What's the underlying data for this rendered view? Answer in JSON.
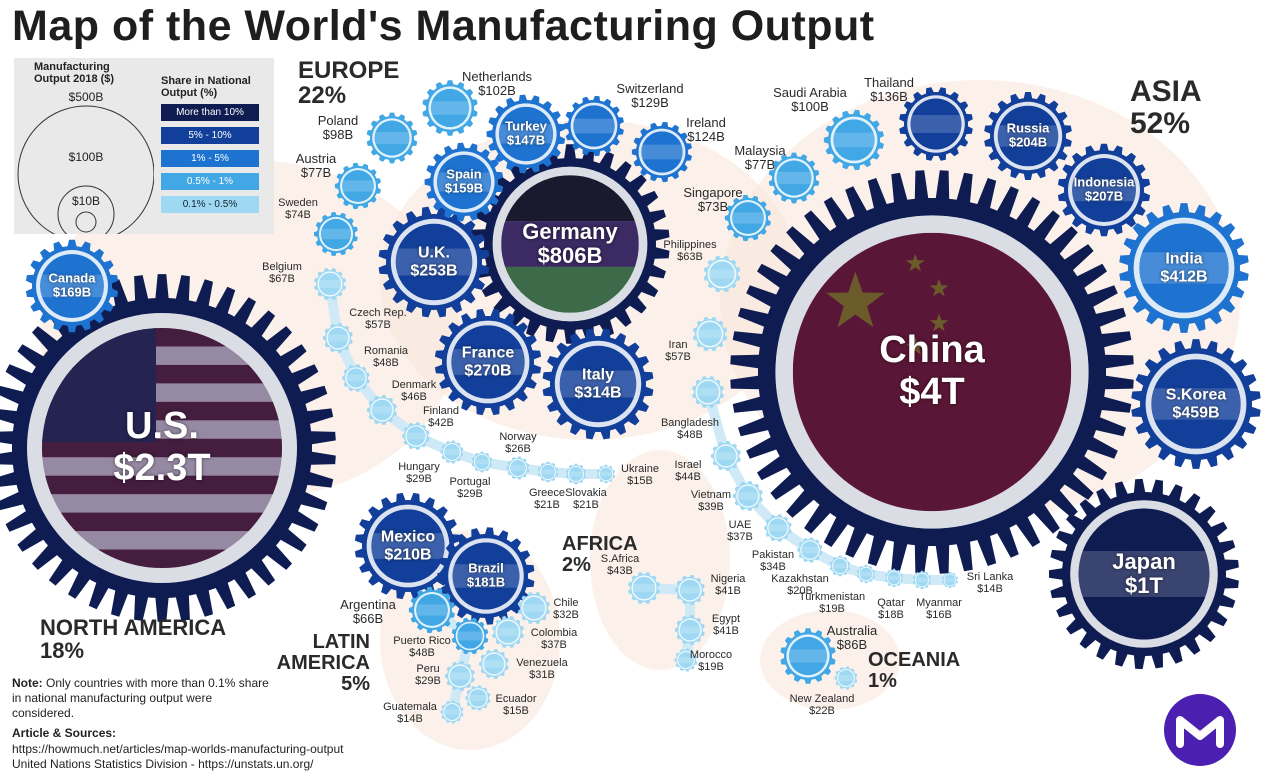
{
  "title": "Map of the World's Manufacturing Output",
  "legend": {
    "size_title": "Manufacturing Output 2018 ($)",
    "sizes": [
      "$500B",
      "$100B",
      "$10B"
    ],
    "share_title": "Share in National Output (%)",
    "shares": [
      {
        "label": "More than 10%",
        "color": "#0f1c52"
      },
      {
        "label": "5% - 10%",
        "color": "#123f9a"
      },
      {
        "label": "1% - 5%",
        "color": "#1e73d1"
      },
      {
        "label": "0.5% - 1%",
        "color": "#41a7e5"
      },
      {
        "label": "0.1% - 0.5%",
        "color": "#9ed8f2"
      }
    ]
  },
  "regions": {
    "europe": {
      "name": "EUROPE",
      "pct": "22%"
    },
    "asia": {
      "name": "ASIA",
      "pct": "52%"
    },
    "north_america": {
      "name": "NORTH AMERICA",
      "pct": "18%"
    },
    "latin_america": {
      "name": "LATIN AMERICA",
      "pct": "5%"
    },
    "africa": {
      "name": "AFRICA",
      "pct": "2%"
    },
    "oceania": {
      "name": "OCEANIA",
      "pct": "1%"
    }
  },
  "countries": [
    {
      "name": "U.S.",
      "value": "$2.3T",
      "tier": 0,
      "flag": "us",
      "inside": true
    },
    {
      "name": "Canada",
      "value": "$169B",
      "tier": 2,
      "inside": true
    },
    {
      "name": "Mexico",
      "value": "$210B",
      "tier": 1,
      "inside": true
    },
    {
      "name": "Brazil",
      "value": "$181B",
      "tier": 1,
      "inside": true
    },
    {
      "name": "Argentina",
      "value": "$66B",
      "tier": 3
    },
    {
      "name": "Chile",
      "value": "$32B",
      "tier": 4
    },
    {
      "name": "Colombia",
      "value": "$37B",
      "tier": 4
    },
    {
      "name": "Puerto Rico",
      "value": "$48B",
      "tier": 3
    },
    {
      "name": "Venezuela",
      "value": "$31B",
      "tier": 4
    },
    {
      "name": "Peru",
      "value": "$29B",
      "tier": 4
    },
    {
      "name": "Ecuador",
      "value": "$15B",
      "tier": 4
    },
    {
      "name": "Guatemala",
      "value": "$14B",
      "tier": 4
    },
    {
      "name": "Germany",
      "value": "$806B",
      "tier": 0,
      "flag": "de",
      "inside": true
    },
    {
      "name": "U.K.",
      "value": "$253B",
      "tier": 1,
      "inside": true
    },
    {
      "name": "France",
      "value": "$270B",
      "tier": 1,
      "inside": true
    },
    {
      "name": "Italy",
      "value": "$314B",
      "tier": 1,
      "inside": true
    },
    {
      "name": "Spain",
      "value": "$159B",
      "tier": 2,
      "inside": true
    },
    {
      "name": "Turkey",
      "value": "$147B",
      "tier": 2,
      "inside": true
    },
    {
      "name": "Netherlands",
      "value": "$102B",
      "tier": 3
    },
    {
      "name": "Switzerland",
      "value": "$129B",
      "tier": 2
    },
    {
      "name": "Ireland",
      "value": "$124B",
      "tier": 2
    },
    {
      "name": "Poland",
      "value": "$98B",
      "tier": 3
    },
    {
      "name": "Austria",
      "value": "$77B",
      "tier": 3
    },
    {
      "name": "Sweden",
      "value": "$74B",
      "tier": 3
    },
    {
      "name": "Belgium",
      "value": "$67B",
      "tier": 4
    },
    {
      "name": "Czech Rep.",
      "value": "$57B",
      "tier": 4
    },
    {
      "name": "Romania",
      "value": "$48B",
      "tier": 4
    },
    {
      "name": "Denmark",
      "value": "$46B",
      "tier": 4
    },
    {
      "name": "Finland",
      "value": "$42B",
      "tier": 4
    },
    {
      "name": "Hungary",
      "value": "$29B",
      "tier": 4
    },
    {
      "name": "Portugal",
      "value": "$29B",
      "tier": 4
    },
    {
      "name": "Norway",
      "value": "$26B",
      "tier": 4
    },
    {
      "name": "Greece",
      "value": "$21B",
      "tier": 4
    },
    {
      "name": "Slovakia",
      "value": "$21B",
      "tier": 4
    },
    {
      "name": "Ukraine",
      "value": "$15B",
      "tier": 4
    },
    {
      "name": "China",
      "value": "$4T",
      "tier": 0,
      "flag": "cn",
      "inside": true
    },
    {
      "name": "Japan",
      "value": "$1T",
      "tier": 0,
      "inside": true
    },
    {
      "name": "S.Korea",
      "value": "$459B",
      "tier": 1,
      "inside": true
    },
    {
      "name": "India",
      "value": "$412B",
      "tier": 2,
      "inside": true
    },
    {
      "name": "Indonesia",
      "value": "$207B",
      "tier": 1,
      "inside": true
    },
    {
      "name": "Russia",
      "value": "$204B",
      "tier": 1,
      "inside": true
    },
    {
      "name": "Thailand",
      "value": "$136B",
      "tier": 1
    },
    {
      "name": "Saudi Arabia",
      "value": "$100B",
      "tier": 3
    },
    {
      "name": "Malaysia",
      "value": "$77B",
      "tier": 3
    },
    {
      "name": "Singapore",
      "value": "$73B",
      "tier": 3
    },
    {
      "name": "Philippines",
      "value": "$63B",
      "tier": 4
    },
    {
      "name": "Iran",
      "value": "$57B",
      "tier": 4
    },
    {
      "name": "Bangladesh",
      "value": "$48B",
      "tier": 4
    },
    {
      "name": "Israel",
      "value": "$44B",
      "tier": 4
    },
    {
      "name": "Vietnam",
      "value": "$39B",
      "tier": 4
    },
    {
      "name": "UAE",
      "value": "$37B",
      "tier": 4
    },
    {
      "name": "Pakistan",
      "value": "$34B",
      "tier": 4
    },
    {
      "name": "Kazakhstan",
      "value": "$20B",
      "tier": 4
    },
    {
      "name": "Turkmenistan",
      "value": "$19B",
      "tier": 4
    },
    {
      "name": "Qatar",
      "value": "$18B",
      "tier": 4
    },
    {
      "name": "Myanmar",
      "value": "$16B",
      "tier": 4
    },
    {
      "name": "Sri Lanka",
      "value": "$14B",
      "tier": 4
    },
    {
      "name": "S.Africa",
      "value": "$43B",
      "tier": 4
    },
    {
      "name": "Nigeria",
      "value": "$41B",
      "tier": 4
    },
    {
      "name": "Egypt",
      "value": "$41B",
      "tier": 4
    },
    {
      "name": "Morocco",
      "value": "$19B",
      "tier": 4
    },
    {
      "name": "Australia",
      "value": "$86B",
      "tier": 3
    },
    {
      "name": "New Zealand",
      "value": "$22B",
      "tier": 4
    }
  ],
  "note": {
    "label": "Note:",
    "text": "Only countries with more than 0.1% share in national manufacturing output were considered."
  },
  "sources": {
    "label": "Article & Sources:",
    "lines": [
      "https://howmuch.net/articles/map-worlds-manufacturing-output",
      "United Nations Statistics Division - https://unstats.un.org/"
    ]
  },
  "logo_letter": "M"
}
